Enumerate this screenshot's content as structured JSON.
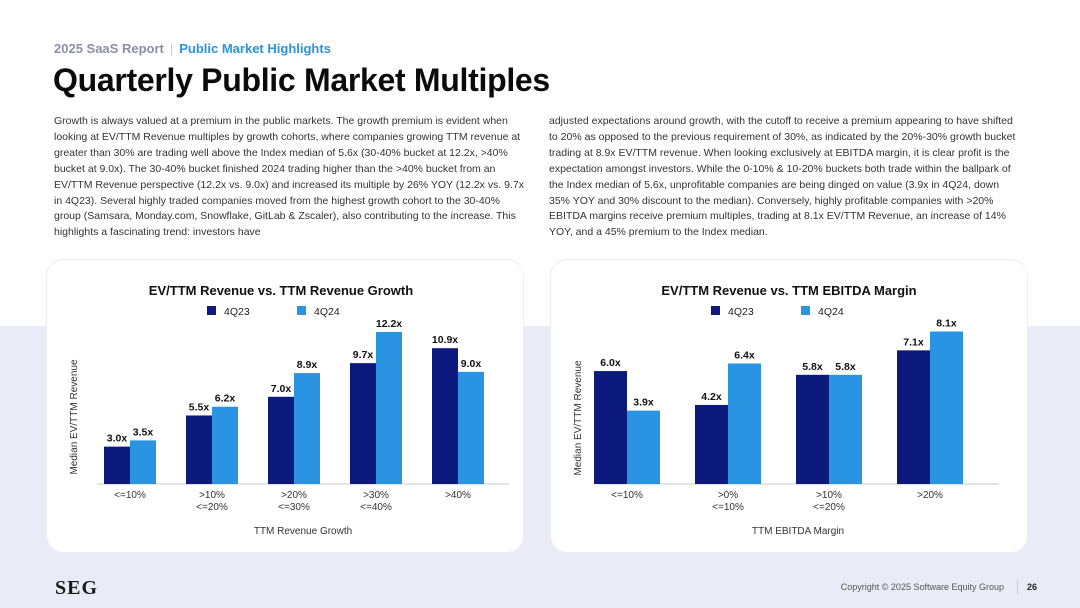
{
  "header": {
    "report": "2025 SaaS Report",
    "separator": "|",
    "section": "Public Market Highlights",
    "title": "Quarterly Public Market Multiples"
  },
  "body": {
    "left_paragraph": "Growth is always valued at a premium in the public markets. The growth premium is evident when looking at EV/TTM Revenue multiples by growth cohorts, where companies growing TTM revenue at greater than 30% are trading well above the Index median of 5.6x (30-40% bucket at 12.2x, >40% bucket at 9.0x). The 30-40% bucket finished 2024 trading higher than the >40% bucket from an EV/TTM Revenue perspective (12.2x vs. 9.0x) and increased its multiple by 26% YOY (12.2x vs. 9.7x in 4Q23). Several highly traded companies moved from the highest growth cohort to the 30-40% group (Samsara, Monday.com, Snowflake, GitLab & Zscaler), also contributing to the increase. This highlights a fascinating trend: investors have",
    "right_paragraph": "adjusted expectations around growth, with the cutoff to receive a premium appearing to have shifted to 20% as opposed to the previous requirement of 30%, as indicated by the 20%-30% growth bucket trading at 8.9x EV/TTM revenue. When looking exclusively at EBITDA margin, it is clear profit is the expectation amongst investors. While the 0-10% & 10-20% buckets both trade within the ballpark of the Index median of 5.6x, unprofitable companies are being dinged on value (3.9x in 4Q24, down 35% YOY and 30% discount to the median). Conversely, highly profitable companies with >20% EBITDA margins receive premium multiples, trading at 8.1x EV/TTM Revenue, an increase of 14% YOY, and a 45% premium to the Index median."
  },
  "colors": {
    "series_4q23": "#0c1a7e",
    "series_4q24": "#2a93e2",
    "accent": "#2a93e2"
  },
  "chart_data": [
    {
      "type": "bar",
      "title": "EV/TTM Revenue vs. TTM Revenue Growth",
      "xlabel": "TTM Revenue Growth",
      "ylabel": "Median EV/TTM Revenue",
      "ylim": [
        0,
        13
      ],
      "categories": [
        [
          "<=10%"
        ],
        [
          ">10%",
          "<=20%"
        ],
        [
          ">20%",
          "<=30%"
        ],
        [
          ">30%",
          "<=40%"
        ],
        [
          ">40%"
        ]
      ],
      "series": [
        {
          "name": "4Q23",
          "values": [
            3.0,
            5.5,
            7.0,
            9.7,
            10.9
          ],
          "labels": [
            "3.0x",
            "5.5x",
            "7.0x",
            "9.7x",
            "10.9x"
          ]
        },
        {
          "name": "4Q24",
          "values": [
            3.5,
            6.2,
            8.9,
            12.2,
            9.0
          ],
          "labels": [
            "3.5x",
            "6.2x",
            "8.9x",
            "12.2x",
            "9.0x"
          ]
        }
      ],
      "legend": "top-center",
      "grid": false
    },
    {
      "type": "bar",
      "title": "EV/TTM Revenue vs. TTM EBITDA Margin",
      "xlabel": "TTM EBITDA Margin",
      "ylabel": "Median EV/TTM Revenue",
      "ylim": [
        0,
        8.5
      ],
      "categories": [
        [
          "<=10%"
        ],
        [
          ">0%",
          "<=10%"
        ],
        [
          ">10%",
          "<=20%"
        ],
        [
          ">20%"
        ]
      ],
      "series": [
        {
          "name": "4Q23",
          "values": [
            6.0,
            4.2,
            5.8,
            7.1
          ],
          "labels": [
            "6.0x",
            "4.2x",
            "5.8x",
            "7.1x"
          ]
        },
        {
          "name": "4Q24",
          "values": [
            3.9,
            6.4,
            5.8,
            8.1
          ],
          "labels": [
            "3.9x",
            "6.4x",
            "5.8x",
            "8.1x"
          ]
        }
      ],
      "legend": "top-center",
      "grid": false
    }
  ],
  "footer": {
    "logo": "SEG",
    "copyright": "Copyright © 2025 Software Equity Group",
    "page": "26"
  }
}
